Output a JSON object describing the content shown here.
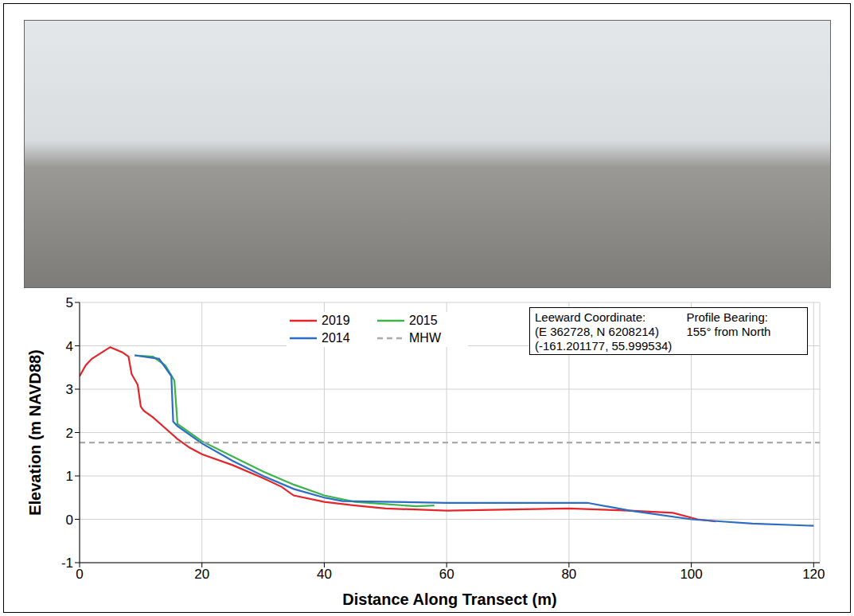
{
  "chart_data": {
    "type": "line",
    "x_label": "Distance Along Transect (m)",
    "y_label": "Elevation (m NAVD88)",
    "xlim": [
      0,
      121
    ],
    "xticks": [
      0,
      20,
      40,
      60,
      80,
      100,
      120
    ],
    "ylim": [
      -1,
      5
    ],
    "yticks": [
      -1,
      0,
      1,
      2,
      3,
      4,
      5
    ],
    "grid": true,
    "legend": "top",
    "annotations": [
      [
        "Leeward Coordinate:",
        "(E 362728, N 6208214)",
        "(-161.201177, 55.999534)"
      ],
      [
        "Profile Bearing:",
        "155° from North"
      ]
    ],
    "series": [
      {
        "name": "2019",
        "color": "#e3262b",
        "line_style": "solid",
        "x": [
          0,
          1,
          2,
          5,
          7,
          8,
          8.5,
          9.5,
          10,
          10.5,
          12,
          14,
          16,
          18,
          20,
          25,
          30,
          33,
          35,
          40,
          45,
          50,
          60,
          80,
          90,
          97,
          101,
          104
        ],
        "values": [
          3.3,
          3.55,
          3.7,
          3.97,
          3.85,
          3.75,
          3.35,
          3.1,
          2.6,
          2.5,
          2.35,
          2.1,
          1.85,
          1.65,
          1.5,
          1.25,
          0.95,
          0.75,
          0.55,
          0.4,
          0.32,
          0.25,
          0.2,
          0.25,
          0.2,
          0.15,
          0,
          -0.05
        ]
      },
      {
        "name": "2015",
        "color": "#3cb44b",
        "line_style": "solid",
        "x": [
          9,
          12,
          14,
          15.5,
          16,
          20,
          25,
          30,
          35,
          40,
          45,
          50,
          55,
          58
        ],
        "values": [
          3.78,
          3.75,
          3.55,
          3.2,
          2.2,
          1.8,
          1.45,
          1.1,
          0.8,
          0.55,
          0.4,
          0.35,
          0.3,
          0.32
        ]
      },
      {
        "name": "2014",
        "color": "#2b6cc4",
        "line_style": "solid",
        "x": [
          9,
          13,
          15,
          15.3,
          16,
          20,
          25,
          30,
          35,
          40,
          43,
          60,
          83,
          90,
          100,
          105,
          110,
          120
        ],
        "values": [
          3.78,
          3.7,
          3.3,
          2.25,
          2.15,
          1.75,
          1.35,
          1.0,
          0.7,
          0.5,
          0.42,
          0.38,
          0.38,
          0.2,
          0.0,
          -0.05,
          -0.1,
          -0.15
        ]
      },
      {
        "name": "MHW",
        "color": "#aaaaaa",
        "line_style": "dashed",
        "x": [
          0,
          121
        ],
        "values": [
          1.77,
          1.77
        ]
      }
    ]
  }
}
